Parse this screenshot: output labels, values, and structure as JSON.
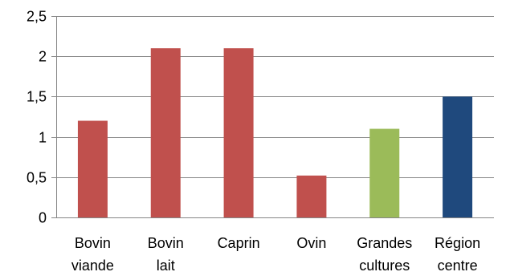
{
  "chart_data": {
    "type": "bar",
    "categories": [
      [
        "Bovin",
        "viande"
      ],
      [
        "Bovin",
        "lait"
      ],
      [
        "Caprin"
      ],
      [
        "Ovin"
      ],
      [
        "Grandes",
        "cultures"
      ],
      [
        "Région",
        "centre"
      ]
    ],
    "values": [
      1.2,
      2.1,
      2.1,
      0.52,
      1.1,
      1.5
    ],
    "colors": [
      "#c0504d",
      "#c0504d",
      "#c0504d",
      "#c0504d",
      "#9bbb59",
      "#1f497d"
    ],
    "ylim": [
      0,
      2.5
    ],
    "yticks": [
      0,
      0.5,
      1,
      1.5,
      2,
      2.5
    ],
    "ytick_labels": [
      "0",
      "0,5",
      "1",
      "1,5",
      "2",
      "2,5"
    ],
    "grid": true,
    "title": "",
    "xlabel": "",
    "ylabel": ""
  }
}
